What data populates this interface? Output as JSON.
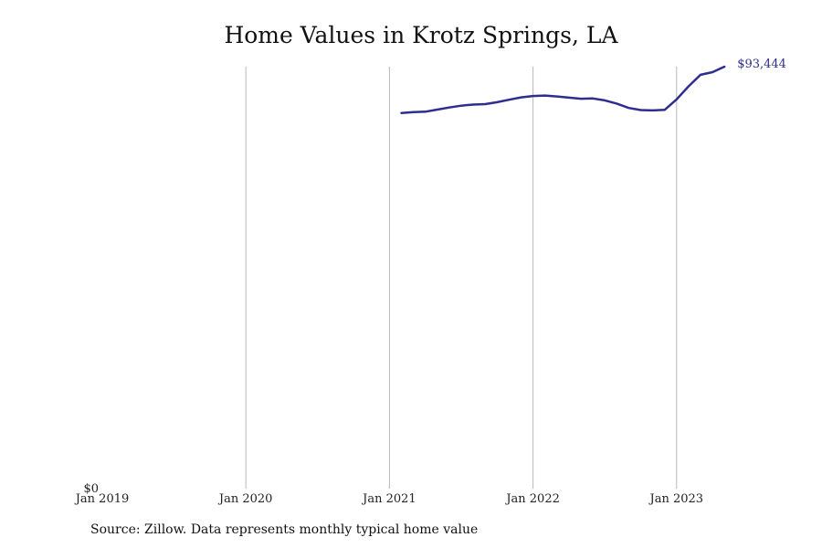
{
  "chart_data": {
    "type": "line",
    "title": "Home Values in Krotz Springs, LA",
    "xlabel": "",
    "ylabel": "",
    "x_tick_labels": [
      "Jan 2019",
      "Jan 2020",
      "Jan 2021",
      "Jan 2022",
      "Jan 2023"
    ],
    "y_tick_labels": [
      "$0"
    ],
    "ylim": [
      0,
      93444
    ],
    "xlim": [
      "2019-01",
      "2023-11"
    ],
    "grid": {
      "vertical": true,
      "horizontal": false
    },
    "legend": "none",
    "end_label": "$93,444",
    "series": [
      {
        "color": "#2e2e8f",
        "x": [
          "2021-02",
          "2021-03",
          "2021-04",
          "2021-05",
          "2021-06",
          "2021-07",
          "2021-08",
          "2021-09",
          "2021-10",
          "2021-11",
          "2021-12",
          "2022-01",
          "2022-02",
          "2022-03",
          "2022-04",
          "2022-05",
          "2022-06",
          "2022-07",
          "2022-08",
          "2022-09",
          "2022-10",
          "2022-11",
          "2022-12",
          "2023-01",
          "2023-02",
          "2023-03",
          "2023-04",
          "2023-05"
        ],
        "values": [
          83180,
          83390,
          83470,
          83940,
          84400,
          84800,
          85060,
          85150,
          85570,
          86130,
          86650,
          86960,
          87060,
          86850,
          86590,
          86340,
          86400,
          85990,
          85270,
          84300,
          83840,
          83760,
          83870,
          86200,
          89100,
          91650,
          92230,
          93444
        ]
      }
    ]
  },
  "source_note": "Source: Zillow. Data represents monthly typical home value"
}
